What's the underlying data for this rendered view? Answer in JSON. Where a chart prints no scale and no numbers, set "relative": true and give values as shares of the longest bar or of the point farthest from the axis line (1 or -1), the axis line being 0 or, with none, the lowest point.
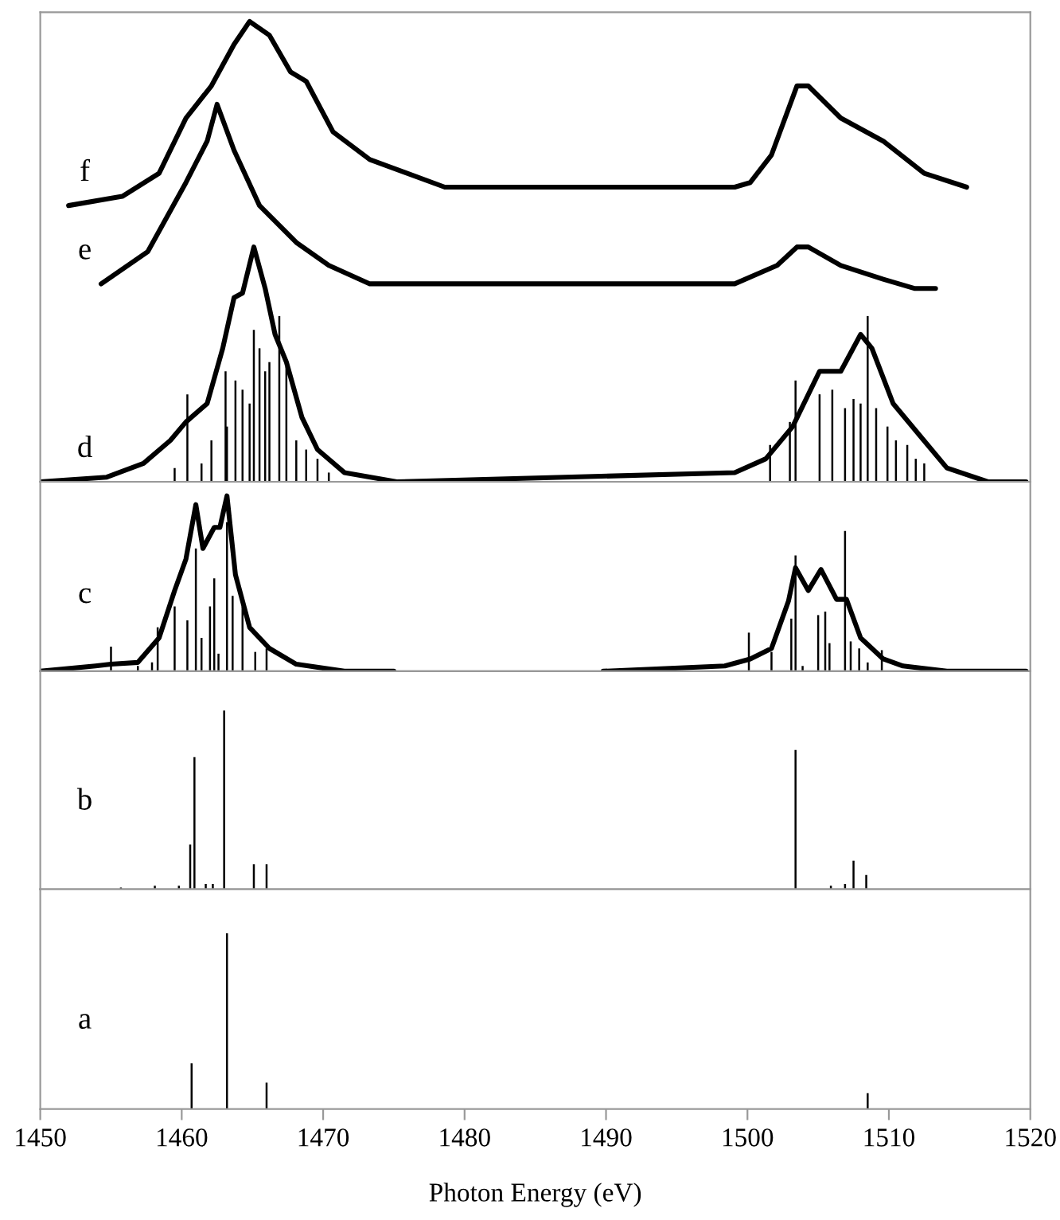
{
  "chart_data": [
    {
      "type": "line",
      "relative": true,
      "xlim": [
        1450,
        1520
      ],
      "tick_labels": false,
      "series": [
        {
          "name": "f",
          "color": "#000000",
          "x": [
            1452.0,
            1455.8,
            1458.4,
            1460.3,
            1462.1,
            1463.7,
            1464.8,
            1466.2,
            1467.7,
            1468.8,
            1470.7,
            1473.3,
            1478.6,
            1499.1,
            1500.2,
            1501.7,
            1503.5,
            1504.3,
            1506.6,
            1509.6,
            1512.5,
            1515.5
          ],
          "values": [
            0.6,
            0.62,
            0.67,
            0.79,
            0.86,
            0.95,
            1.0,
            0.97,
            0.89,
            0.87,
            0.76,
            0.7,
            0.64,
            0.64,
            0.65,
            0.71,
            0.86,
            0.86,
            0.79,
            0.74,
            0.67,
            0.64
          ]
        },
        {
          "name": "e",
          "color": "#000000",
          "x": [
            1454.3,
            1457.6,
            1460.3,
            1461.8,
            1462.5,
            1463.7,
            1465.5,
            1468.1,
            1470.4,
            1473.3,
            1499.1,
            1502.1,
            1503.5,
            1504.3,
            1506.6,
            1509.6,
            1511.8,
            1513.3
          ],
          "values": [
            0.43,
            0.5,
            0.65,
            0.74,
            0.82,
            0.72,
            0.6,
            0.52,
            0.47,
            0.43,
            0.43,
            0.47,
            0.51,
            0.51,
            0.47,
            0.44,
            0.42,
            0.42
          ]
        },
        {
          "type": "bar",
          "color": "#000000",
          "x": [
            1459.5,
            1460.4,
            1461.4,
            1462.1,
            1463.1,
            1463.2,
            1463.8,
            1464.3,
            1464.8,
            1465.1,
            1465.5,
            1465.9,
            1466.2,
            1466.9,
            1467.4,
            1468.1,
            1468.8,
            1469.6,
            1470.4,
            1501.6,
            1503.0,
            1503.4,
            1505.1,
            1506.0,
            1506.9,
            1507.5,
            1508.0,
            1508.5,
            1509.1,
            1509.9,
            1510.5,
            1511.3,
            1511.9,
            1512.5
          ],
          "values": [
            0.03,
            0.19,
            0.04,
            0.09,
            0.24,
            0.12,
            0.22,
            0.2,
            0.17,
            0.33,
            0.29,
            0.24,
            0.26,
            0.36,
            0.25,
            0.09,
            0.07,
            0.05,
            0.02,
            0.08,
            0.13,
            0.22,
            0.19,
            0.2,
            0.16,
            0.18,
            0.17,
            0.36,
            0.16,
            0.12,
            0.09,
            0.08,
            0.05,
            0.04
          ]
        },
        {
          "name": "d",
          "color": "#000000",
          "x": [
            1450.0,
            1454.7,
            1457.3,
            1459.2,
            1460.3,
            1461.8,
            1462.9,
            1463.7,
            1464.3,
            1465.1,
            1465.9,
            1466.6,
            1467.4,
            1468.5,
            1469.6,
            1471.5,
            1475.2,
            1499.1,
            1501.3,
            1503.2,
            1505.1,
            1506.6,
            1508.0,
            1508.8,
            1510.3,
            1512.2,
            1514.1,
            1517.0,
            1519.7
          ],
          "values": [
            0,
            0.01,
            0.04,
            0.09,
            0.13,
            0.17,
            0.29,
            0.4,
            0.41,
            0.51,
            0.42,
            0.32,
            0.26,
            0.14,
            0.07,
            0.02,
            0,
            0.02,
            0.05,
            0.12,
            0.24,
            0.24,
            0.32,
            0.29,
            0.17,
            0.1,
            0.03,
            0,
            0
          ]
        }
      ]
    },
    {
      "type": "line",
      "relative": true,
      "xlim": [
        1450,
        1520
      ],
      "tick_labels": false,
      "series": [
        {
          "type": "bar",
          "color": "#000000",
          "x": [
            1455.0,
            1456.9,
            1457.9,
            1458.3,
            1459.5,
            1460.4,
            1461.0,
            1461.4,
            1462.0,
            1462.3,
            1462.6,
            1463.2,
            1463.6,
            1464.3,
            1465.2,
            1466.0,
            1500.1,
            1501.7,
            1503.1,
            1503.4,
            1503.9,
            1505.0,
            1505.5,
            1505.8,
            1506.9,
            1507.3,
            1507.9,
            1508.5,
            1509.5
          ],
          "values": [
            0.14,
            0.03,
            0.05,
            0.25,
            0.37,
            0.29,
            0.7,
            0.19,
            0.37,
            0.53,
            0.1,
            0.85,
            0.43,
            0.37,
            0.11,
            0.13,
            0.22,
            0.11,
            0.3,
            0.66,
            0.03,
            0.32,
            0.34,
            0.16,
            0.8,
            0.17,
            0.13,
            0.05,
            0.12
          ]
        },
        {
          "name": "c",
          "color": "#000000",
          "x": [
            1450.0,
            1453.9,
            1455.0,
            1456.9,
            1458.4,
            1459.5,
            1460.3,
            1461.0,
            1461.5,
            1462.3,
            1462.7,
            1463.2,
            1463.8,
            1464.8,
            1466.2,
            1468.1,
            1471.5,
            1475.0,
            1482.0,
            1489.8,
            1498.4,
            1500.2,
            1501.7,
            1502.9,
            1503.4,
            1504.3,
            1505.2,
            1506.3,
            1507.0,
            1508.0,
            1509.6,
            1511.0,
            1514.1,
            1519.7
          ],
          "values": [
            0,
            0.03,
            0.04,
            0.05,
            0.19,
            0.46,
            0.64,
            0.95,
            0.7,
            0.82,
            0.82,
            1.0,
            0.55,
            0.25,
            0.13,
            0.04,
            0,
            0,
            null,
            0,
            0.03,
            0.07,
            0.13,
            0.4,
            0.59,
            0.46,
            0.58,
            0.41,
            0.41,
            0.19,
            0.07,
            0.03,
            0,
            0
          ]
        }
      ]
    },
    {
      "type": "bar",
      "relative": true,
      "xlim": [
        1450,
        1520
      ],
      "tick_labels": false,
      "series": [
        {
          "name": "b",
          "color": "#000000",
          "x": [
            1455.7,
            1458.1,
            1459.8,
            1460.6,
            1460.9,
            1461.7,
            1462.2,
            1463.0,
            1465.1,
            1466.0,
            1503.4,
            1505.9,
            1506.9,
            1507.5,
            1508.4
          ],
          "values": [
            0.01,
            0.02,
            0.02,
            0.25,
            0.74,
            0.03,
            0.03,
            1.0,
            0.14,
            0.14,
            0.78,
            0.02,
            0.03,
            0.16,
            0.08
          ]
        }
      ]
    },
    {
      "type": "bar",
      "relative": true,
      "xlim": [
        1450,
        1520
      ],
      "xticks": [
        1450,
        1460,
        1470,
        1480,
        1490,
        1500,
        1510,
        1520
      ],
      "tick_labels": "x",
      "xlabel": "Photon Energy (eV)",
      "series": [
        {
          "name": "a",
          "color": "#000000",
          "x": [
            1460.7,
            1463.2,
            1466.0,
            1508.5
          ],
          "values": [
            0.26,
            1.0,
            0.15,
            0.09
          ]
        }
      ]
    }
  ]
}
